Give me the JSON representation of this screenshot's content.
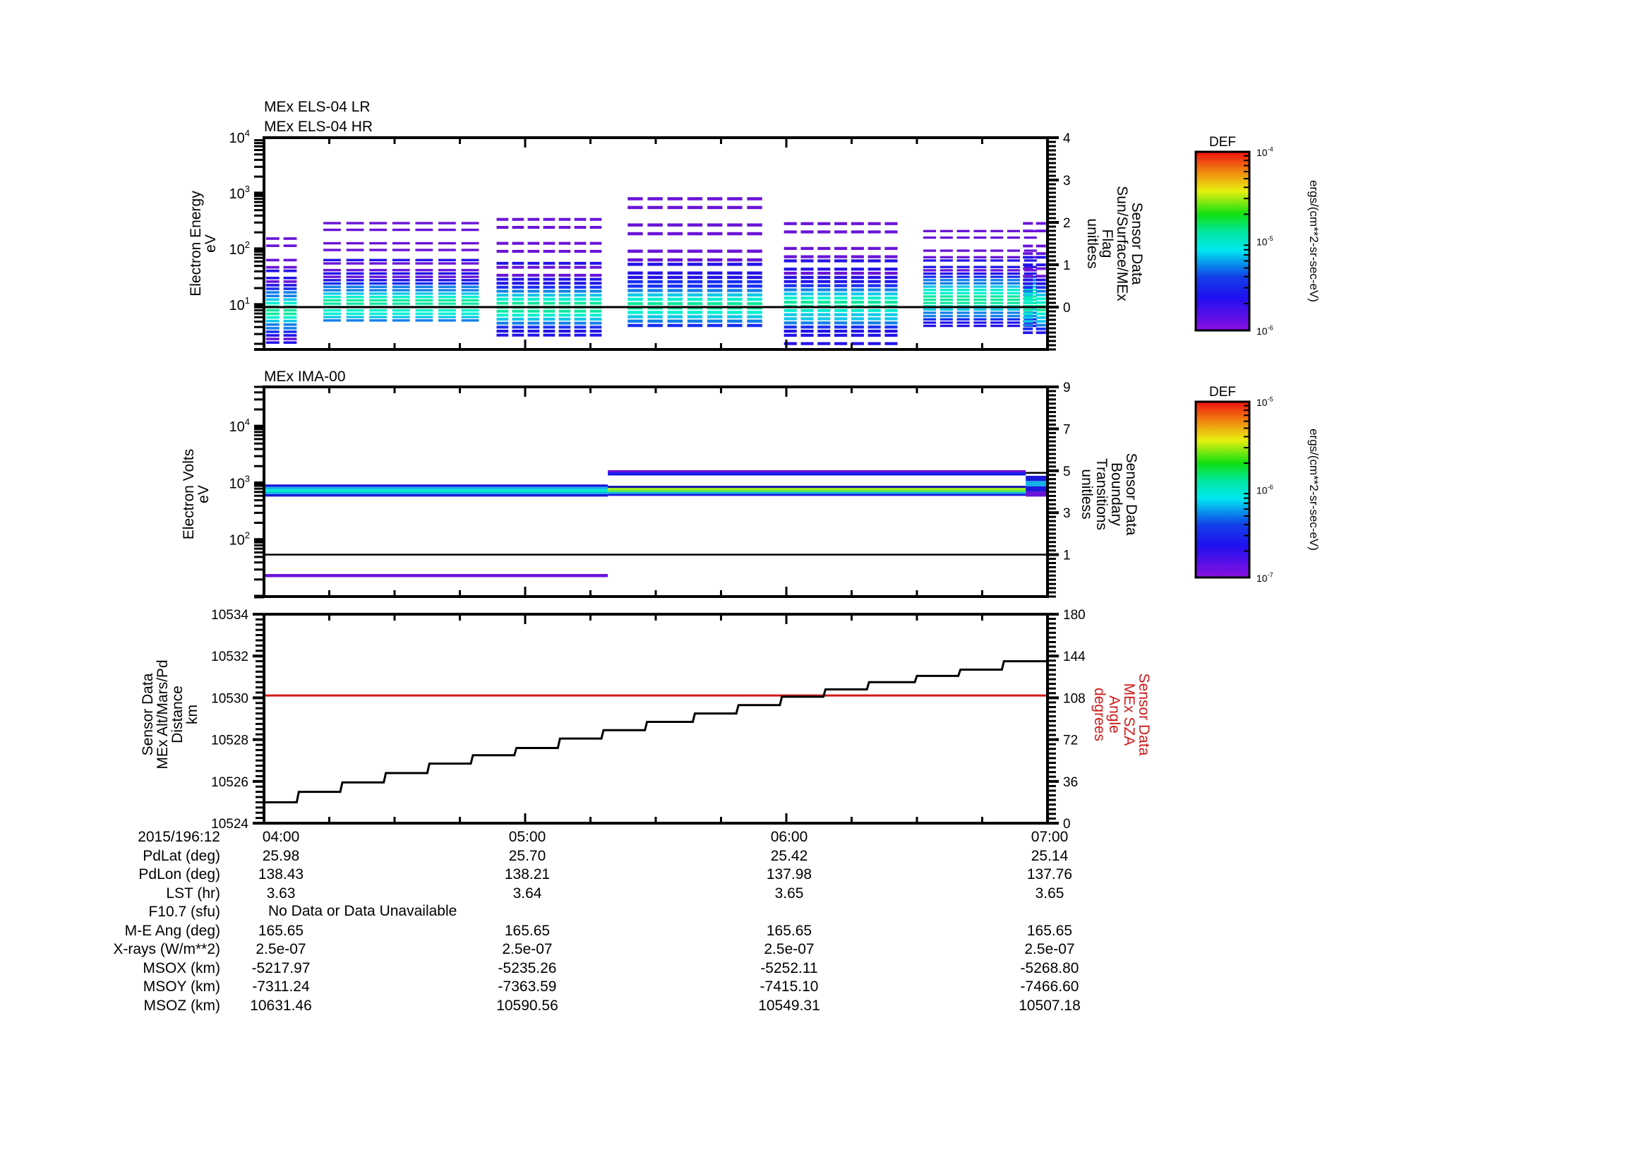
{
  "chart_data": [
    {
      "type": "heatmap",
      "panel": 1,
      "titles": [
        "MEx ELS-04 LR",
        "MEx ELS-04 HR"
      ],
      "ylabel": [
        "Electron Energy",
        "eV"
      ],
      "yscale": "log",
      "ylim": [
        1,
        10000
      ],
      "yticks": [
        "10^1",
        "10^2",
        "10^3",
        "10^4"
      ],
      "right_axis": {
        "label": [
          "Sensor Data",
          "Sun/Surface/MEx",
          "Flag",
          "unitless"
        ],
        "ylim": [
          -1,
          4
        ],
        "ticks": [
          "0",
          "1",
          "2",
          "3",
          "4"
        ],
        "line_value": 0
      },
      "xlim": [
        "04:00",
        "07:00"
      ],
      "colorbar": {
        "title": "DEF",
        "ticks": [
          "10^-6",
          "10^-5",
          "10^-4"
        ],
        "range": [
          1e-06,
          0.0001
        ],
        "units": "ergs/(cm**2-sr-sec-eV)"
      },
      "data_clusters": [
        {
          "start": "04:00",
          "end": "04:08",
          "emin": 2,
          "emax": 170,
          "peak_ev": 8
        },
        {
          "start": "04:13",
          "end": "04:50",
          "emin": 5,
          "emax": 320,
          "peak_ev": 10
        },
        {
          "start": "04:53",
          "end": "05:18",
          "emin": 2.7,
          "emax": 380,
          "peak_ev": 9
        },
        {
          "start": "05:23",
          "end": "05:55",
          "emin": 4,
          "emax": 900,
          "peak_ev": 10
        },
        {
          "start": "05:59",
          "end": "06:26",
          "emin": 1.9,
          "emax": 320,
          "peak_ev": 10
        },
        {
          "start": "06:31",
          "end": "06:58",
          "emin": 4,
          "emax": 230,
          "peak_ev": 13
        },
        {
          "start": "06:54",
          "end": "07:00",
          "emin": 3,
          "emax": 320,
          "peak_ev": 9
        }
      ]
    },
    {
      "type": "heatmap",
      "panel": 2,
      "title": "MEx IMA-00",
      "ylabel": [
        "Electron Volts",
        "eV"
      ],
      "yscale": "log",
      "ylim": [
        10,
        50000
      ],
      "yticks": [
        "10^2",
        "10^3",
        "10^4"
      ],
      "right_axis": {
        "label": [
          "Sensor Data",
          "Boundary",
          "Transitions",
          "unitless"
        ],
        "ylim": [
          -1,
          9
        ],
        "ticks": [
          "1",
          "3",
          "5",
          "7",
          "9"
        ],
        "line_value": 1
      },
      "colorbar": {
        "title": "DEF",
        "ticks": [
          "10^-7",
          "10^-6",
          "10^-5"
        ],
        "range": [
          1e-07,
          1e-05
        ],
        "units": "ergs/(cm**2-sr-sec-eV)"
      },
      "bands": [
        {
          "start": "04:00",
          "end": "05:19",
          "emin": 580,
          "emax": 950,
          "colors": [
            "#1a1ad8",
            "#14b4e8",
            "#00f0c8",
            "#14b4e8",
            "#1a1ad8"
          ]
        },
        {
          "start": "04:00",
          "end": "05:19",
          "emin": 22,
          "emax": 25,
          "colors": [
            "#6a14d8"
          ]
        },
        {
          "start": "05:19",
          "end": "06:55",
          "emin": 600,
          "emax": 900,
          "colors": [
            "#1a1ad8",
            "#14b4e8",
            "#60f040",
            "#a8f028",
            "#1414b0"
          ]
        },
        {
          "start": "05:19",
          "end": "06:55",
          "emin": 1400,
          "emax": 1700,
          "colors": [
            "#1010e8",
            "#2020f0",
            "#6a14d8"
          ]
        },
        {
          "start": "06:55",
          "end": "07:00",
          "emin": 580,
          "emax": 1350,
          "colors": [
            "#6a14d8",
            "#1a1ad8",
            "#14b4e8",
            "#1a1ad8"
          ]
        }
      ]
    },
    {
      "type": "line",
      "panel": 3,
      "ylabel": [
        "Sensor Data",
        "MEx Alt/Mars/Pd",
        "Distance",
        "km"
      ],
      "ylim": [
        10524,
        10534
      ],
      "yticks": [
        "10524",
        "10526",
        "10528",
        "10530",
        "10532",
        "10534"
      ],
      "right_axis": {
        "label": [
          "Sensor Data",
          "MEx SZA",
          "Angle",
          "degrees"
        ],
        "ylim": [
          0,
          180
        ],
        "ticks": [
          "0",
          "36",
          "72",
          "108",
          "144",
          "180"
        ],
        "color": "#d01818"
      },
      "series": [
        {
          "name": "MEx Alt/Mars/Pd Distance (km)",
          "color": "#000000",
          "style": "step",
          "x_min": [
            0,
            8,
            24,
            40,
            57,
            73,
            89,
            105,
            122,
            138,
            154,
            170
          ],
          "y": [
            10525.0,
            10525.5,
            10525.95,
            10526.4,
            10526.85,
            10527.25,
            10527.6,
            10528.05,
            10528.45,
            10528.85,
            10529.25,
            10529.65,
            10530.05,
            10530.4,
            10530.75,
            10531.05,
            10531.35,
            10531.75
          ],
          "x": [
            0,
            8,
            18,
            28,
            38,
            48,
            58,
            68,
            78,
            88,
            99,
            109,
            119,
            129,
            139,
            150,
            160,
            170
          ]
        },
        {
          "name": "MEx SZA Angle (degrees)",
          "color": "#d01818",
          "style": "line",
          "x": [
            0,
            180
          ],
          "y": [
            110,
            110
          ]
        }
      ],
      "xticks": [
        "04:00",
        "05:00",
        "06:00",
        "07:00"
      ]
    }
  ],
  "ephemeris": {
    "rows": [
      {
        "label": "2015/196:12",
        "values": [
          "04:00",
          "05:00",
          "06:00",
          "07:00"
        ]
      },
      {
        "label": "PdLat (deg)",
        "values": [
          "25.98",
          "25.70",
          "25.42",
          "25.14"
        ]
      },
      {
        "label": "PdLon (deg)",
        "values": [
          "138.43",
          "138.21",
          "137.98",
          "137.76"
        ]
      },
      {
        "label": "LST (hr)",
        "values": [
          "3.63",
          "3.64",
          "3.65",
          "3.65"
        ]
      },
      {
        "label": "F10.7 (sfu)",
        "values": [],
        "note": "No Data or Data Unavailable"
      },
      {
        "label": "M-E Ang (deg)",
        "values": [
          "165.65",
          "165.65",
          "165.65",
          "165.65"
        ]
      },
      {
        "label": "X-rays (W/m**2)",
        "values": [
          "2.5e-07",
          "2.5e-07",
          "2.5e-07",
          "2.5e-07"
        ]
      },
      {
        "label": "MSOX (km)",
        "values": [
          "-5217.97",
          "-5235.26",
          "-5252.11",
          "-5268.80"
        ]
      },
      {
        "label": "MSOY (km)",
        "values": [
          "-7311.24",
          "-7363.59",
          "-7415.10",
          "-7466.60"
        ]
      },
      {
        "label": "MSOZ (km)",
        "values": [
          "10631.46",
          "10590.56",
          "10549.31",
          "10507.18"
        ]
      }
    ]
  }
}
